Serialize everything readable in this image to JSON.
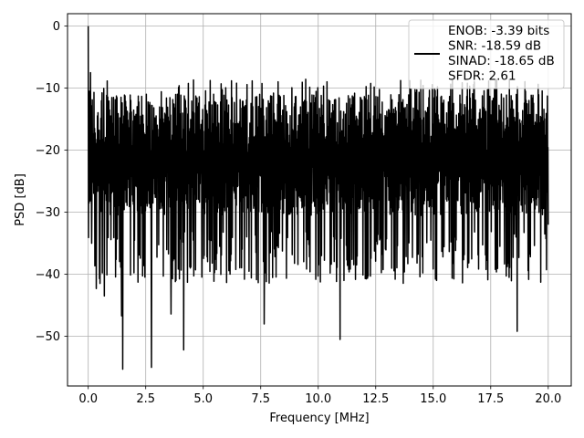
{
  "chart_data": {
    "type": "line",
    "xlabel": "Frequency [MHz]",
    "ylabel": "PSD [dB]",
    "xlim": [
      -0.9,
      21.0
    ],
    "ylim": [
      -58,
      2
    ],
    "xticks": [
      0.0,
      2.5,
      5.0,
      7.5,
      10.0,
      12.5,
      15.0,
      17.5,
      20.0
    ],
    "xtick_labels": [
      "0.0",
      "2.5",
      "5.0",
      "7.5",
      "10.0",
      "12.5",
      "15.0",
      "17.5",
      "20.0"
    ],
    "yticks": [
      0,
      -10,
      -20,
      -30,
      -40,
      -50
    ],
    "ytick_labels": [
      "0",
      "−10",
      "−20",
      "−30",
      "−40",
      "−50"
    ],
    "grid": true,
    "legend_position": "top-right",
    "legend_lines": [
      "ENOB: -3.39 bits",
      "SNR: -18.59 dB",
      "SINAD: -18.65 dB",
      "SFDR: 2.61"
    ],
    "series_color": "#000000",
    "x_range": [
      0.0,
      20.0
    ],
    "anchors": [
      {
        "x": 0.0,
        "y": 0.0
      },
      {
        "x": 0.05,
        "y": -10.5
      },
      {
        "x": 0.1,
        "y": -7.5
      },
      {
        "x": 0.15,
        "y": -35.0
      },
      {
        "x": 0.35,
        "y": -42.3
      },
      {
        "x": 0.7,
        "y": -43.5
      },
      {
        "x": 1.1,
        "y": -11.5
      },
      {
        "x": 1.45,
        "y": -46.7
      },
      {
        "x": 1.5,
        "y": -55.3
      },
      {
        "x": 2.75,
        "y": -55.0
      },
      {
        "x": 3.6,
        "y": -46.4
      },
      {
        "x": 4.15,
        "y": -52.2
      },
      {
        "x": 6.45,
        "y": -9.2
      },
      {
        "x": 7.65,
        "y": -48.0
      },
      {
        "x": 10.95,
        "y": -50.5
      },
      {
        "x": 18.65,
        "y": -49.2
      },
      {
        "x": 20.0,
        "y": -32.0
      }
    ],
    "noise": {
      "points": 1600,
      "center_db": -20.5,
      "floor_min_db": -37.0,
      "peak_max_db": -11.5,
      "seed": 7
    }
  }
}
